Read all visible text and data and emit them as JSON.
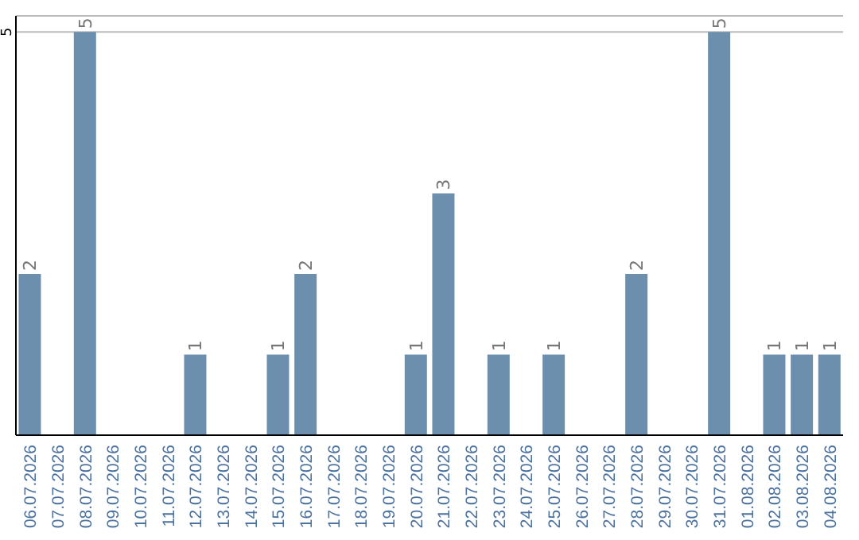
{
  "chart_data": {
    "type": "bar",
    "categories": [
      "06.07.2026",
      "07.07.2026",
      "08.07.2026",
      "09.07.2026",
      "10.07.2026",
      "11.07.2026",
      "12.07.2026",
      "13.07.2026",
      "14.07.2026",
      "15.07.2026",
      "16.07.2026",
      "17.07.2026",
      "18.07.2026",
      "19.07.2026",
      "20.07.2026",
      "21.07.2026",
      "22.07.2026",
      "23.07.2026",
      "24.07.2026",
      "25.07.2026",
      "26.07.2026",
      "27.07.2026",
      "28.07.2026",
      "29.07.2026",
      "30.07.2026",
      "31.07.2026",
      "01.08.2026",
      "02.08.2026",
      "03.08.2026",
      "04.08.2026"
    ],
    "values": [
      2,
      0,
      5,
      0,
      0,
      0,
      1,
      0,
      0,
      1,
      2,
      0,
      0,
      0,
      1,
      3,
      0,
      1,
      0,
      1,
      0,
      0,
      2,
      0,
      0,
      5,
      0,
      1,
      1,
      1
    ],
    "value_labels": [
      "2",
      null,
      "5",
      null,
      null,
      null,
      "1",
      null,
      null,
      "1",
      "2",
      null,
      null,
      null,
      "1",
      "3",
      null,
      "1",
      null,
      "1",
      null,
      null,
      "2",
      null,
      null,
      "5",
      null,
      "1",
      "1",
      "1"
    ],
    "color": "#6d8fae",
    "ylim": [
      0,
      5.2
    ],
    "yticks": [
      5
    ],
    "grid": "y"
  }
}
